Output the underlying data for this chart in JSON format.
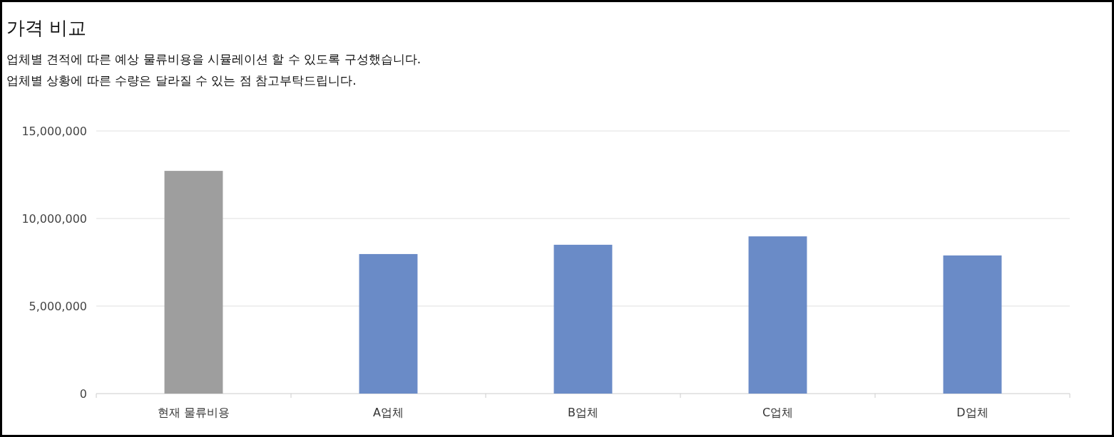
{
  "chart_data": {
    "type": "bar",
    "title": "가격 비교",
    "subtitle": "업체별 견적에 따른 예상 물류비용을 시뮬레이션 할 수 있도록 구성했습니다.\n업체별 상황에 따른 수량은 달라질 수 있는 점 참고부탁드립니다.",
    "categories": [
      "현재 물류비용",
      "A업체",
      "B업체",
      "C업체",
      "D업체"
    ],
    "values": [
      12720000,
      7970000,
      8500000,
      8980000,
      7890000
    ],
    "colors": [
      "#9e9e9e",
      "#6a8bc7",
      "#6a8bc7",
      "#6a8bc7",
      "#6a8bc7"
    ],
    "ylim": [
      0,
      15000000
    ],
    "yticks": [
      0,
      {
        "value": 5000000,
        "label": "5,000,000"
      },
      {
        "value": 10000000,
        "label": "10,000,000"
      },
      {
        "value": 15000000,
        "label": "15,000,000"
      }
    ],
    "grid": "y"
  }
}
